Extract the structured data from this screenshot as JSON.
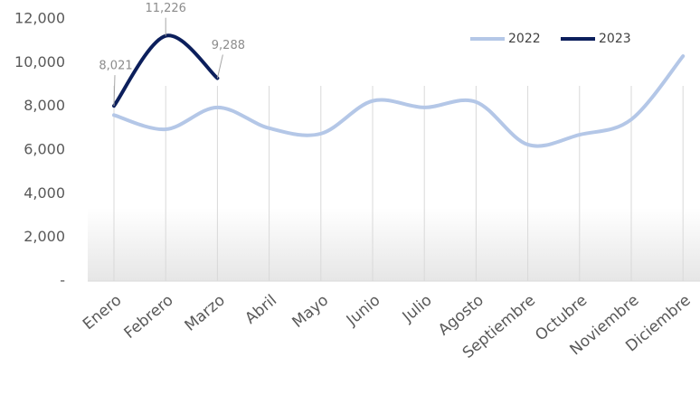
{
  "chart_data": {
    "type": "line",
    "categories": [
      "Enero",
      "Febrero",
      "Marzo",
      "Abril",
      "Mayo",
      "Junio",
      "Julio",
      "Agosto",
      "Septiembre",
      "Octubre",
      "Noviembre",
      "Diciembre"
    ],
    "series": [
      {
        "name": "2022",
        "color": "#b4c7e7",
        "values": [
          7600,
          6950,
          7950,
          7000,
          6750,
          8250,
          7950,
          8200,
          6250,
          6700,
          7400,
          10300
        ]
      },
      {
        "name": "2023",
        "color": "#0c1f5c",
        "values": [
          8021,
          11226,
          9288,
          null,
          null,
          null,
          null,
          null,
          null,
          null,
          null,
          null
        ],
        "value_labels": [
          "8,021",
          "11,226",
          "9,288",
          null,
          null,
          null,
          null,
          null,
          null,
          null,
          null,
          null
        ]
      }
    ],
    "ylim": [
      0,
      12000
    ],
    "yticks": [
      {
        "value": 0,
        "label": "-"
      },
      {
        "value": 2000,
        "label": "2,000"
      },
      {
        "value": 4000,
        "label": "4,000"
      },
      {
        "value": 6000,
        "label": "6,000"
      },
      {
        "value": 8000,
        "label": "8,000"
      },
      {
        "value": 10000,
        "label": "10,000"
      },
      {
        "value": 12000,
        "label": "12,000"
      }
    ],
    "grid": true,
    "legend": "top-right"
  }
}
